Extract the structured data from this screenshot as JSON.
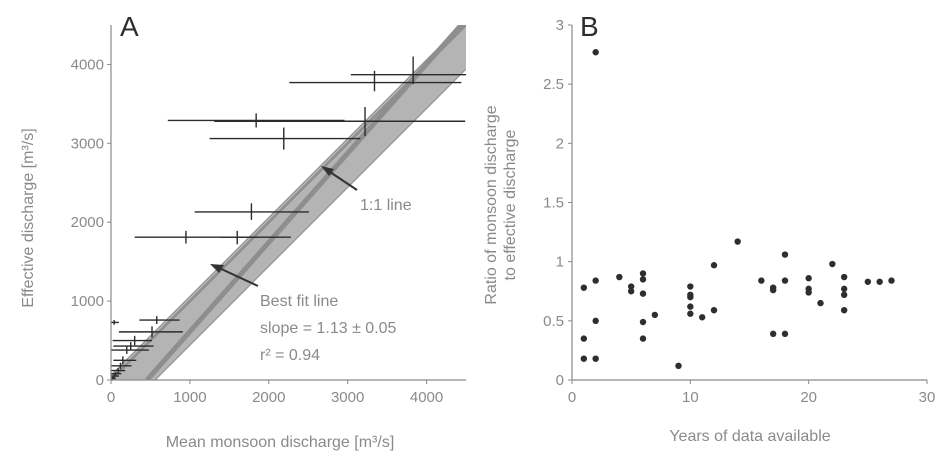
{
  "chart_data": [
    {
      "type": "scatter",
      "panel_label": "A",
      "xlabel": "Mean monsoon discharge [m³/s]",
      "ylabel": "Effective discharge [m³/s]",
      "xlim": [
        0,
        4500
      ],
      "ylim": [
        0,
        4500
      ],
      "x_ticks": [
        "0",
        "1000",
        "2000",
        "3000",
        "4000"
      ],
      "y_ticks": [
        "0",
        "1000",
        "2000",
        "3000",
        "4000"
      ],
      "lines": [
        {
          "name": "1:1 line",
          "slope": 1.0,
          "intercept": 0
        },
        {
          "name": "Best fit line",
          "slope": 1.13,
          "intercept": 0,
          "band": [
            0.0,
            0.0
          ]
        }
      ],
      "annotations": {
        "one_to_one": "1:1 line",
        "best_fit": "Best fit line",
        "slope": "slope = 1.13 ± 0.05",
        "r2": "r² = 0.94"
      },
      "points": [
        {
          "x": 3830,
          "y": 3870,
          "xerr": [
            3040,
            4530
          ],
          "yerr": [
            3750,
            4100
          ]
        },
        {
          "x": 3340,
          "y": 3770,
          "xerr": [
            2260,
            4440
          ],
          "yerr": [
            3660,
            3920
          ]
        },
        {
          "x": 3220,
          "y": 3280,
          "xerr": [
            1310,
            4490
          ],
          "yerr": [
            3090,
            3460
          ]
        },
        {
          "x": 1840,
          "y": 3290,
          "xerr": [
            720,
            2960
          ],
          "yerr": [
            3200,
            3380
          ]
        },
        {
          "x": 2190,
          "y": 3060,
          "xerr": [
            1250,
            3160
          ],
          "yerr": [
            2920,
            3200
          ]
        },
        {
          "x": 1780,
          "y": 2130,
          "xerr": [
            1060,
            2510
          ],
          "yerr": [
            2030,
            2240
          ]
        },
        {
          "x": 950,
          "y": 1810,
          "xerr": [
            300,
            1870
          ],
          "yerr": [
            1730,
            1890
          ]
        },
        {
          "x": 1600,
          "y": 1810,
          "xerr": [
            1380,
            2280
          ],
          "yerr": [
            1720,
            1890
          ]
        },
        {
          "x": 580,
          "y": 760,
          "xerr": [
            360,
            870
          ],
          "yerr": [
            710,
            810
          ]
        },
        {
          "x": 520,
          "y": 610,
          "xerr": [
            100,
            910
          ],
          "yerr": [
            540,
            680
          ]
        },
        {
          "x": 40,
          "y": 730,
          "xerr": [
            0,
            100
          ],
          "yerr": [
            700,
            760
          ]
        },
        {
          "x": 300,
          "y": 500,
          "xerr": [
            20,
            520
          ],
          "yerr": [
            440,
            560
          ]
        },
        {
          "x": 250,
          "y": 430,
          "xerr": [
            30,
            540
          ],
          "yerr": [
            380,
            480
          ]
        },
        {
          "x": 200,
          "y": 380,
          "xerr": [
            0,
            480
          ],
          "yerr": [
            330,
            430
          ]
        },
        {
          "x": 150,
          "y": 250,
          "xerr": [
            30,
            320
          ],
          "yerr": [
            200,
            300
          ]
        },
        {
          "x": 120,
          "y": 180,
          "xerr": [
            0,
            260
          ],
          "yerr": [
            140,
            220
          ]
        },
        {
          "x": 90,
          "y": 120,
          "xerr": [
            0,
            180
          ],
          "yerr": [
            90,
            150
          ]
        },
        {
          "x": 60,
          "y": 80,
          "xerr": [
            0,
            130
          ],
          "yerr": [
            60,
            100
          ]
        },
        {
          "x": 40,
          "y": 50,
          "xerr": [
            0,
            100
          ],
          "yerr": [
            30,
            70
          ]
        },
        {
          "x": 20,
          "y": 20,
          "xerr": [
            0,
            60
          ],
          "yerr": [
            0,
            40
          ]
        }
      ]
    },
    {
      "type": "scatter",
      "panel_label": "B",
      "xlabel": "Years of data available",
      "ylabel": "Ratio of monsoon discharge to effective discharge",
      "ylabel_lines": [
        "Ratio of monsoon discharge",
        "to effective discharge"
      ],
      "xlim": [
        0,
        30
      ],
      "ylim": [
        0,
        3
      ],
      "x_ticks": [
        "0",
        "10",
        "20",
        "30"
      ],
      "y_ticks": [
        "0",
        "0.5",
        "1",
        "1.5",
        "2",
        "2.5",
        "3"
      ],
      "x": [
        1,
        1,
        1,
        2,
        2,
        2,
        2,
        4,
        5,
        5,
        6,
        6,
        6,
        6,
        6,
        7,
        9,
        10,
        10,
        10,
        10,
        10,
        11,
        12,
        12,
        14,
        16,
        17,
        17,
        17,
        18,
        18,
        18,
        20,
        20,
        20,
        21,
        22,
        23,
        23,
        23,
        23,
        25,
        26,
        27
      ],
      "y": [
        0.78,
        0.35,
        0.18,
        2.77,
        0.84,
        0.5,
        0.18,
        0.87,
        0.79,
        0.75,
        0.9,
        0.85,
        0.73,
        0.49,
        0.35,
        0.55,
        0.12,
        0.79,
        0.72,
        0.7,
        0.62,
        0.56,
        0.53,
        0.97,
        0.59,
        1.17,
        0.84,
        0.78,
        0.76,
        0.39,
        1.06,
        0.84,
        0.39,
        0.86,
        0.77,
        0.74,
        0.65,
        0.98,
        0.87,
        0.77,
        0.72,
        0.59,
        0.83,
        0.83,
        0.84
      ]
    }
  ]
}
